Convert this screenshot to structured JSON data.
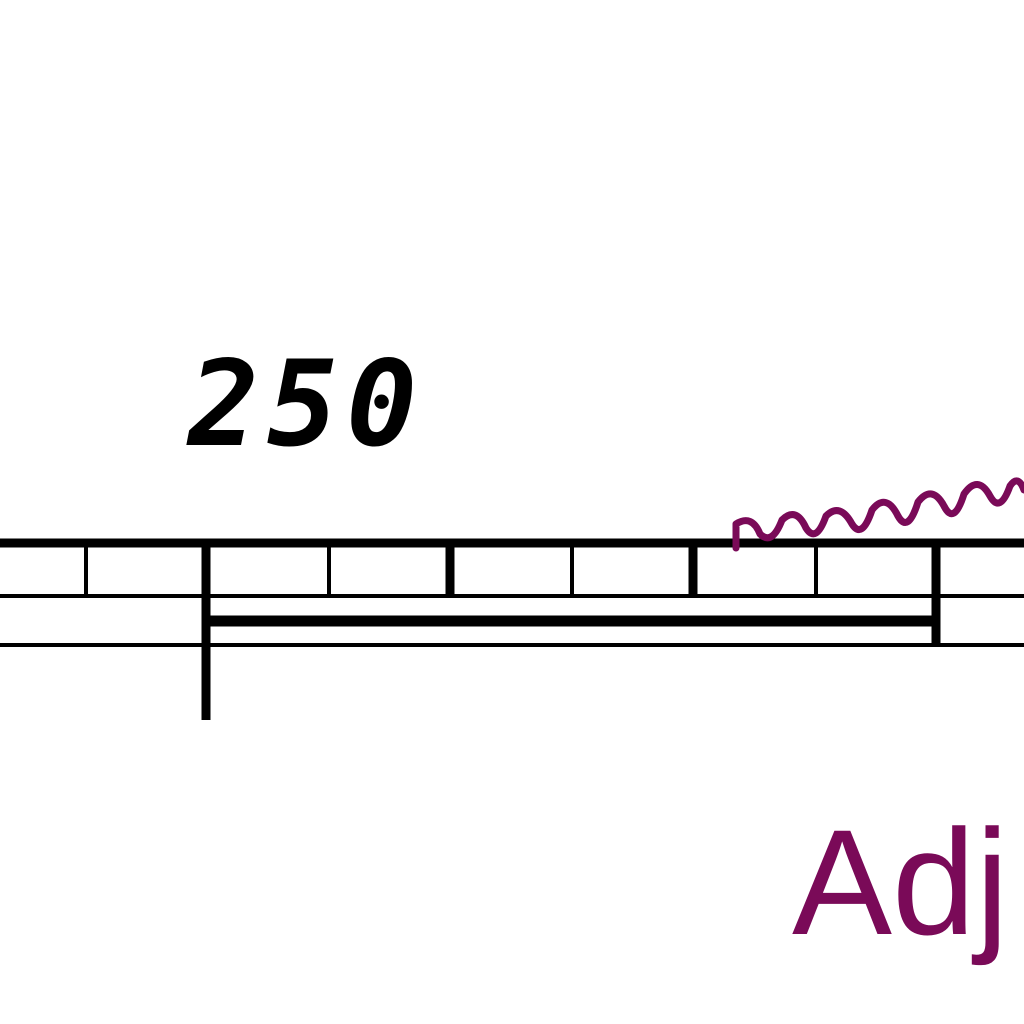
{
  "dimension": {
    "label": "250"
  },
  "annotation": {
    "label": "Adj"
  },
  "colors": {
    "linework": "#000000",
    "annotation": "#7a0a58",
    "background": "#ffffff"
  }
}
